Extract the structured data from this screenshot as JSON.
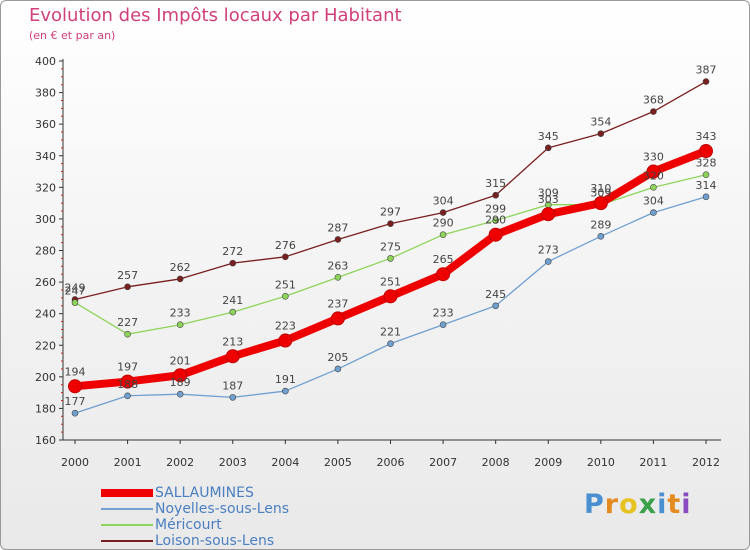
{
  "chart_data": {
    "type": "line",
    "title": "Evolution des Impôts locaux par Habitant",
    "subtitle": "(en € et par an)",
    "xlabel": "",
    "ylabel": "",
    "ylim": [
      160,
      400
    ],
    "yticks": [
      160,
      180,
      200,
      220,
      240,
      260,
      280,
      300,
      320,
      340,
      360,
      380,
      400
    ],
    "categories": [
      "2000",
      "2001",
      "2002",
      "2003",
      "2004",
      "2005",
      "2006",
      "2007",
      "2008",
      "2009",
      "2010",
      "2011",
      "2012"
    ],
    "grid": false,
    "legend_position": "bottom-left",
    "series": [
      {
        "name": "Loison-sous-Lens",
        "color": "#7a1f1f",
        "values": [
          249,
          257,
          262,
          272,
          276,
          287,
          297,
          304,
          315,
          345,
          354,
          368,
          387
        ]
      },
      {
        "name": "Méricourt",
        "color": "#8fd45a",
        "values": [
          247,
          227,
          233,
          241,
          251,
          263,
          275,
          290,
          299,
          309,
          309,
          320,
          328
        ]
      },
      {
        "name": "Noyelles-sous-Lens",
        "color": "#6fa0d0",
        "values": [
          177,
          188,
          189,
          187,
          191,
          205,
          221,
          233,
          245,
          273,
          289,
          304,
          314
        ]
      },
      {
        "name": "SALLAUMINES",
        "color": "#ee0000",
        "values": [
          194,
          197,
          201,
          213,
          223,
          237,
          251,
          265,
          290,
          303,
          310,
          330,
          343
        ]
      }
    ]
  },
  "legend": {
    "items": [
      {
        "label": "SALLAUMINES",
        "color": "#ee0000"
      },
      {
        "label": "Noyelles-sous-Lens",
        "color": "#6fa0d0"
      },
      {
        "label": "Méricourt",
        "color": "#8fd45a"
      },
      {
        "label": "Loison-sous-Lens",
        "color": "#7a1f1f"
      }
    ]
  },
  "logo": {
    "letters": [
      {
        "ch": "P",
        "color": "#4a90d0"
      },
      {
        "ch": "r",
        "color": "#e58a1f"
      },
      {
        "ch": "o",
        "color": "#e5c21f"
      },
      {
        "ch": "x",
        "color": "#3aa04a"
      },
      {
        "ch": "i",
        "color": "#4a90d0"
      },
      {
        "ch": "t",
        "color": "#e58a1f"
      },
      {
        "ch": "i",
        "color": "#8a4ac0"
      }
    ]
  }
}
